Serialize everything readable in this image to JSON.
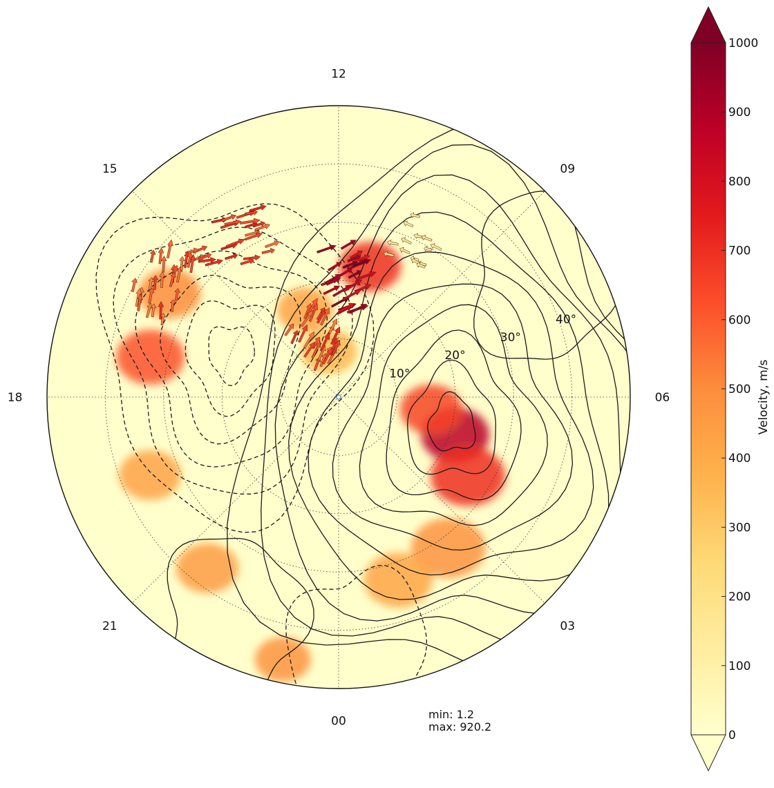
{
  "chart_data": {
    "type": "heatmap",
    "projection": "polar",
    "center_marker": true,
    "mlt_labels": [
      "12",
      "09",
      "06",
      "03",
      "00",
      "21",
      "18",
      "15"
    ],
    "colatitude_rings": [
      10,
      20,
      30,
      40
    ],
    "colatitude_labels": [
      "10°",
      "20°",
      "30°",
      "40°"
    ],
    "grid": true,
    "colorbar": {
      "label": "Velocity, m/s",
      "min": 0,
      "max": 1000,
      "ticks": [
        "0",
        "100",
        "200",
        "300",
        "400",
        "500",
        "600",
        "700",
        "800",
        "900",
        "1000"
      ],
      "extend": "both",
      "colors": [
        "#ffffcc",
        "#ffeda0",
        "#fed976",
        "#feb24c",
        "#fd8d3c",
        "#fc4e2a",
        "#e31a1c",
        "#bd0026",
        "#800026"
      ]
    },
    "stats": {
      "min_text": "min: 1.2",
      "max_text": "max: 920.2"
    },
    "velocity_blobs": [
      {
        "mlt": 4.8,
        "colat": 21,
        "value": 880,
        "spread": 0.55
      },
      {
        "mlt": 3.9,
        "colat": 26,
        "value": 700,
        "spread": 0.6
      },
      {
        "mlt": 5.5,
        "colat": 16,
        "value": 650,
        "spread": 0.5
      },
      {
        "mlt": 2.4,
        "colat": 32,
        "value": 480,
        "spread": 0.6
      },
      {
        "mlt": 1.2,
        "colat": 33,
        "value": 420,
        "spread": 0.55
      },
      {
        "mlt": 17.2,
        "colat": 33,
        "value": 620,
        "spread": 0.55
      },
      {
        "mlt": 15.9,
        "colat": 34,
        "value": 500,
        "spread": 0.5
      },
      {
        "mlt": 19.5,
        "colat": 35,
        "value": 430,
        "spread": 0.5
      },
      {
        "mlt": 21.5,
        "colat": 37,
        "value": 450,
        "spread": 0.5
      },
      {
        "mlt": 23.2,
        "colat": 46,
        "value": 480,
        "spread": 0.45
      },
      {
        "mlt": 11.1,
        "colat": 23,
        "value": 700,
        "spread": 0.5
      },
      {
        "mlt": 13.4,
        "colat": 16,
        "value": 430,
        "spread": 0.45
      },
      {
        "mlt": 12.8,
        "colat": 8,
        "value": 360,
        "spread": 0.45
      }
    ],
    "vector_groups": [
      {
        "mlt_range": [
          11.4,
          12.6
        ],
        "colat_range": [
          14,
          26
        ],
        "speed": 900,
        "dir_deg": -25,
        "length": 26
      },
      {
        "mlt_range": [
          13.6,
          15.2
        ],
        "colat_range": [
          28,
          38
        ],
        "speed": 650,
        "dir_deg": -15,
        "length": 24
      },
      {
        "mlt_range": [
          15.2,
          16.6
        ],
        "colat_range": [
          32,
          40
        ],
        "speed": 600,
        "dir_deg": -80,
        "length": 22
      },
      {
        "mlt_range": [
          12.5,
          14.8
        ],
        "colat_range": [
          6,
          16
        ],
        "speed": 620,
        "dir_deg": -62,
        "length": 24
      },
      {
        "mlt_range": [
          9.6,
          10.6
        ],
        "colat_range": [
          26,
          34
        ],
        "speed": 150,
        "dir_deg": 200,
        "length": 14
      }
    ],
    "contours_positive": [
      {
        "center": [
          5.1,
          20
        ],
        "levels": [
          2,
          4,
          6,
          8,
          10,
          12,
          14,
          16,
          18,
          20
        ]
      },
      {
        "center": [
          8.0,
          40
        ],
        "levels": [
          2
        ]
      },
      {
        "center": [
          22.3,
          42
        ],
        "levels": [
          2
        ]
      }
    ],
    "contours_negative": [
      {
        "center": [
          16.5,
          20
        ],
        "levels": [
          2,
          4,
          6,
          8,
          10,
          12
        ]
      },
      {
        "center": [
          0.3,
          44
        ],
        "levels": [
          2
        ]
      }
    ]
  }
}
